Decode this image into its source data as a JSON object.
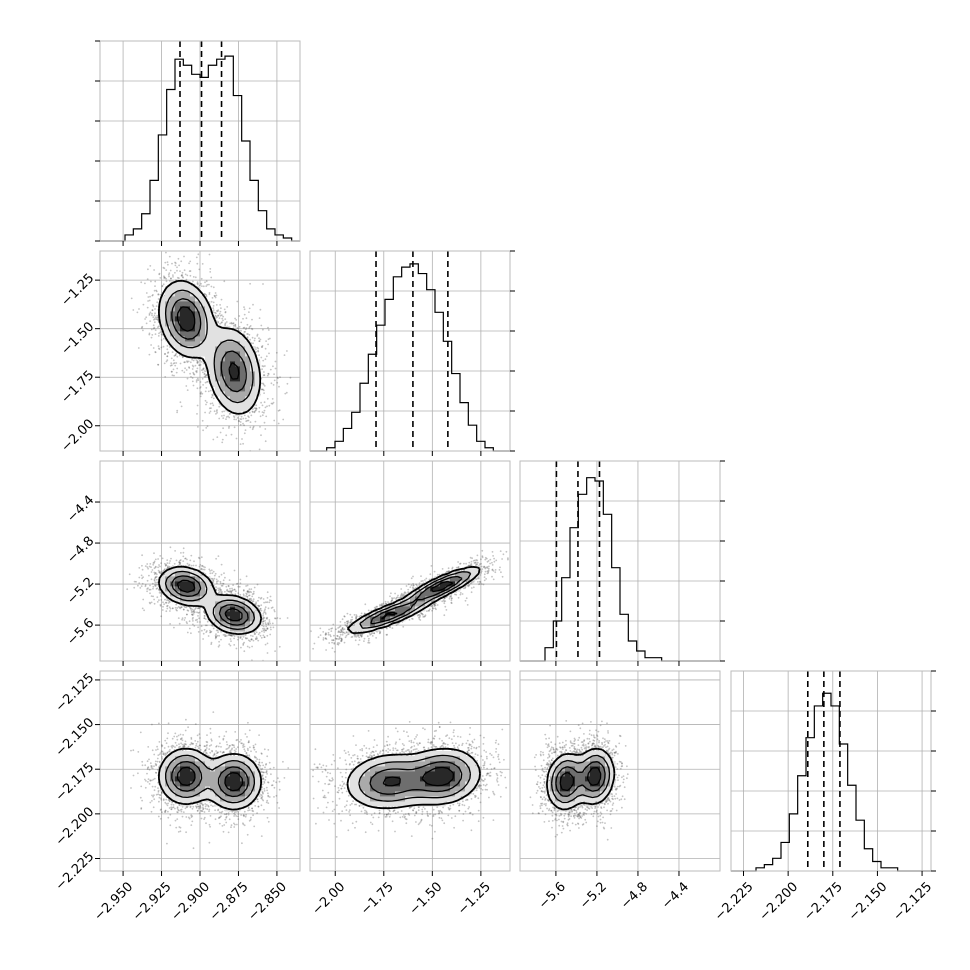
{
  "chart_data": {
    "type": "corner",
    "parameters": [
      "",
      "",
      "",
      ""
    ],
    "panel_colors": {
      "background": "#ffffff",
      "frame": "#bbbbbb",
      "grid": "#b0b0b0",
      "hist": "#000000",
      "contour": "#000000",
      "points": "#555555"
    },
    "grid": true,
    "ranges": [
      [
        -2.965,
        -2.835
      ],
      [
        -2.13,
        -1.1
      ],
      [
        -5.95,
        -4.0
      ],
      [
        -2.232,
        -2.12
      ]
    ],
    "ticks": {
      "p0": {
        "values": [
          -2.95,
          -2.925,
          -2.9,
          -2.875,
          -2.85
        ],
        "labels": [
          "−2.950",
          "−2.925",
          "−2.900",
          "−2.875",
          "−2.850"
        ]
      },
      "p1": {
        "values": [
          -2.0,
          -1.75,
          -1.5,
          -1.25
        ],
        "labels": [
          "−2.00",
          "−1.75",
          "−1.50",
          "−1.25"
        ]
      },
      "p2": {
        "values": [
          -5.6,
          -5.2,
          -4.8,
          -4.4
        ],
        "labels": [
          "−5.6",
          "−5.2",
          "−4.8",
          "−4.4"
        ]
      },
      "p3": {
        "values": [
          -2.225,
          -2.2,
          -2.175,
          -2.15,
          -2.125
        ],
        "labels": [
          "−2.225",
          "−2.200",
          "−2.175",
          "−2.150",
          "−2.125"
        ]
      }
    },
    "quantiles": {
      "p0": [
        -2.913,
        -2.899,
        -2.886
      ],
      "p1": [
        -1.79,
        -1.6,
        -1.42
      ],
      "p2": [
        -5.595,
        -5.385,
        -5.175
      ],
      "p3": [
        -2.189,
        -2.18,
        -2.171
      ]
    },
    "histograms": {
      "p0": [
        0,
        0,
        0,
        2,
        4,
        9,
        20,
        35,
        50,
        60,
        58,
        55,
        54,
        58,
        60,
        61,
        48,
        33,
        20,
        10,
        4,
        2,
        1,
        0
      ],
      "p1": [
        0,
        0,
        1,
        3,
        7,
        12,
        21,
        30,
        39,
        47,
        54,
        57,
        58,
        55,
        50,
        43,
        34,
        24,
        15,
        8,
        3,
        1,
        0,
        0
      ],
      "p2": [
        0,
        0,
        0,
        4,
        12,
        25,
        40,
        50,
        55,
        54,
        44,
        28,
        14,
        6,
        3,
        1,
        1,
        0,
        0,
        0,
        0,
        0,
        0,
        0
      ],
      "p3": [
        0,
        0,
        0,
        1,
        2,
        4,
        9,
        18,
        30,
        42,
        52,
        56,
        52,
        40,
        27,
        16,
        7,
        3,
        1,
        1,
        0,
        0,
        0,
        0
      ]
    },
    "hist_ymax": {
      "p0": 66,
      "p1": 62,
      "p2": 60,
      "p3": 63
    },
    "modes": [
      {
        "center": [
          -2.909,
          -1.45,
          -5.22,
          -2.179
        ],
        "sd": [
          0.0085,
          0.095,
          0.09,
          0.0075
        ],
        "rho": {
          "0-1": -0.2,
          "0-2": -0.2,
          "0-3": 0.0,
          "1-2": 0.85,
          "1-3": 0.1,
          "2-3": 0.1
        }
      },
      {
        "center": [
          -2.878,
          -1.72,
          -5.5,
          -2.182
        ],
        "sd": [
          0.0085,
          0.11,
          0.09,
          0.0075
        ],
        "rho": {
          "0-1": -0.2,
          "0-2": -0.2,
          "0-3": 0.0,
          "1-2": 0.85,
          "1-3": 0.1,
          "2-3": 0.1
        }
      }
    ],
    "sample_count": 2600,
    "contour_levels": 4
  }
}
